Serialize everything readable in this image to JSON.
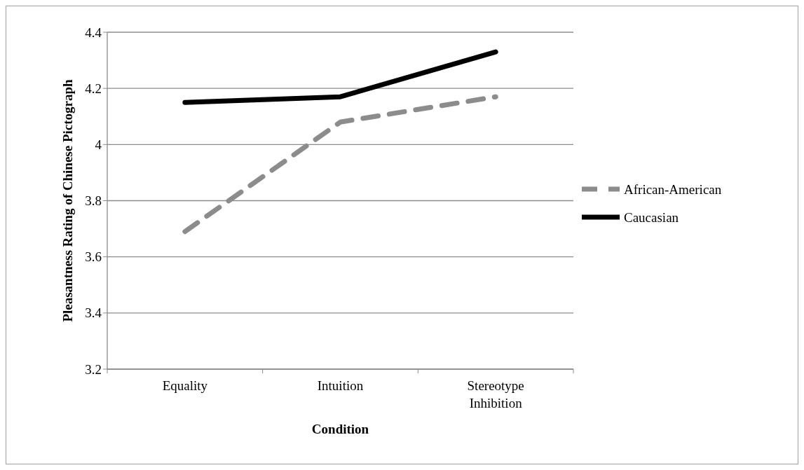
{
  "chart_data": {
    "type": "line",
    "xlabel": "Condition",
    "ylabel": "Pleasantness Rating of Chinese Pictograph",
    "categories": [
      "Equality",
      "Intuition",
      "Stereotype Inhibition"
    ],
    "series": [
      {
        "name": "African-American",
        "color": "#8c8c8c",
        "line_style": "dashed",
        "values": [
          3.69,
          4.08,
          4.17
        ]
      },
      {
        "name": "Caucasian",
        "color": "#000000",
        "line_style": "solid",
        "values": [
          4.15,
          4.17,
          4.33
        ]
      }
    ],
    "ylim": [
      3.2,
      4.4
    ],
    "yticks": [
      3.2,
      3.4,
      3.6,
      3.8,
      {
        "value": 4,
        "label": "4"
      },
      4.2,
      4.4
    ],
    "grid": "y",
    "legend": "right",
    "marker": "none"
  }
}
